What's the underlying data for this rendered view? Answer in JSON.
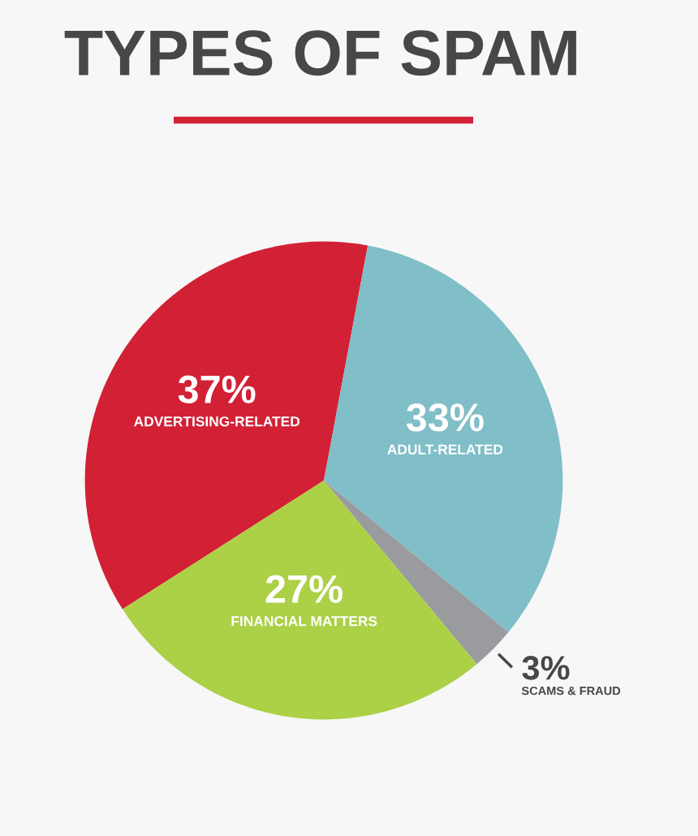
{
  "chart_data": {
    "type": "pie",
    "title": "TYPES OF SPAM",
    "categories": [
      "ADVERTISING-RELATED",
      "ADULT-RELATED",
      "SCAMS & FRAUD",
      "FINANCIAL MATTERS"
    ],
    "values": [
      37,
      33,
      3,
      27
    ],
    "value_labels": [
      "37%",
      "33%",
      "3%",
      "27%"
    ],
    "colors": [
      "#d22035",
      "#80bec8",
      "#9a9b9f",
      "#acd046"
    ]
  }
}
